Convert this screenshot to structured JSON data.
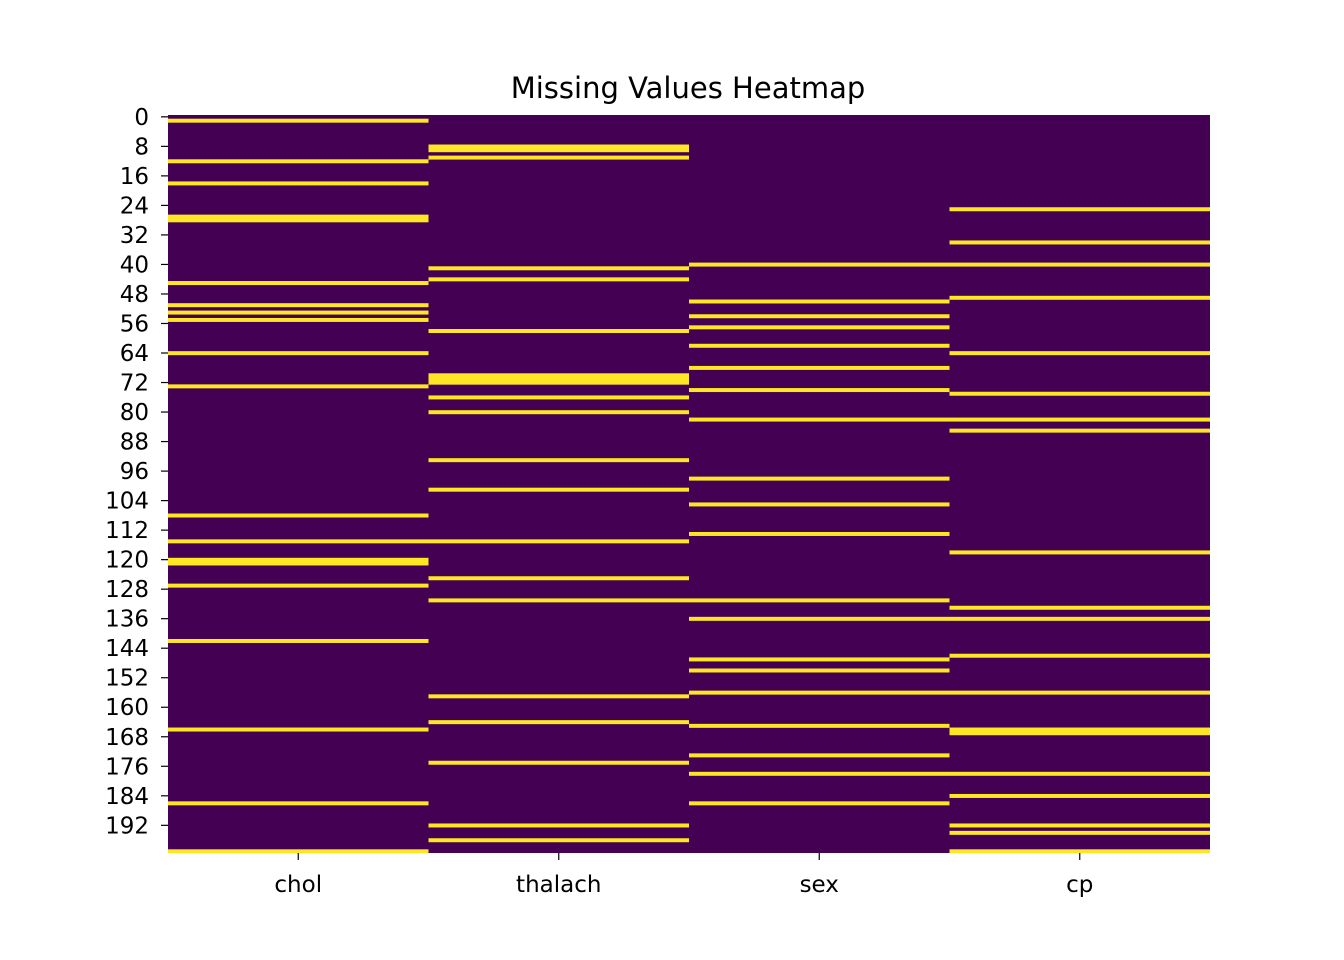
{
  "chart_data": {
    "type": "heatmap",
    "title": "Missing Values Heatmap",
    "xlabel": "",
    "ylabel": "",
    "columns": [
      "chol",
      "thalach",
      "sex",
      "cp"
    ],
    "row_count": 200,
    "ytick_labels": [
      "0",
      "8",
      "16",
      "24",
      "32",
      "40",
      "48",
      "56",
      "64",
      "72",
      "80",
      "88",
      "96",
      "104",
      "112",
      "120",
      "128",
      "136",
      "144",
      "152",
      "160",
      "168",
      "176",
      "184",
      "192"
    ],
    "value_range": [
      0,
      1
    ],
    "colors": {
      "present": "#440154",
      "missing": "#fde725"
    },
    "colorbar": false,
    "missing_rows": {
      "chol": [
        1,
        12,
        18,
        27,
        28,
        45,
        51,
        53,
        55,
        64,
        73,
        108,
        115,
        120,
        121,
        127,
        142,
        166,
        186,
        199
      ],
      "thalach": [
        8,
        9,
        11,
        41,
        44,
        58,
        70,
        71,
        72,
        76,
        80,
        93,
        101,
        115,
        125,
        131,
        157,
        164,
        175,
        192,
        196
      ],
      "sex": [
        40,
        50,
        54,
        57,
        62,
        68,
        74,
        82,
        98,
        105,
        113,
        131,
        136,
        147,
        150,
        156,
        165,
        173,
        178,
        186
      ],
      "cp": [
        25,
        34,
        40,
        49,
        64,
        75,
        82,
        85,
        118,
        133,
        136,
        146,
        156,
        166,
        167,
        178,
        184,
        192,
        194,
        199
      ]
    }
  }
}
